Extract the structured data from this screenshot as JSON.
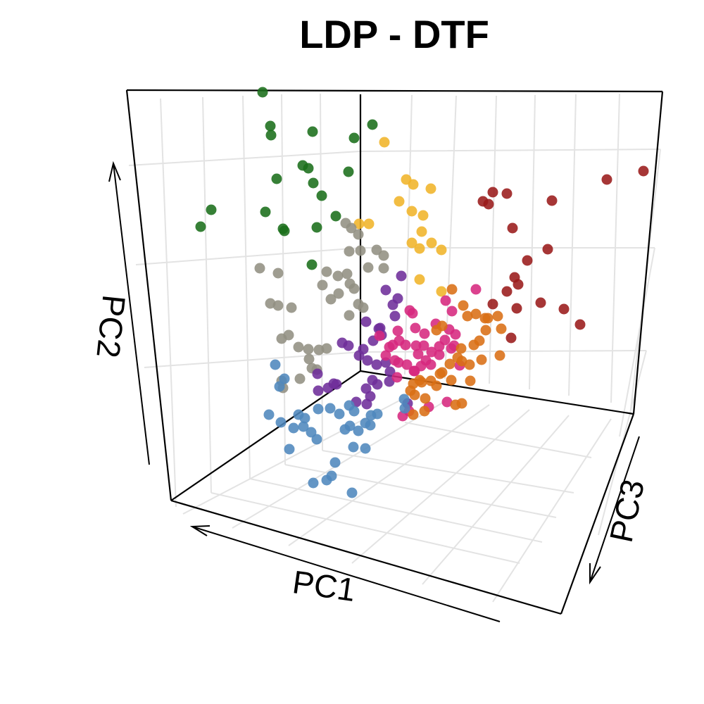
{
  "chart_data": {
    "type": "scatter",
    "title": "LDP - DTF",
    "projection": "3d",
    "axes": {
      "x": {
        "label": "PC1"
      },
      "y": {
        "label": "PC2"
      },
      "z": {
        "label": "PC3"
      }
    },
    "grid": true,
    "legend": "none",
    "series": [
      {
        "color": "#1a6e1a",
        "points": [
          [
            373,
            131
          ],
          [
            384,
            179
          ],
          [
            385,
            192
          ],
          [
            444,
            187
          ],
          [
            503,
            196
          ],
          [
            529,
            177
          ],
          [
            430,
            235
          ],
          [
            438,
            239
          ],
          [
            393,
            254
          ],
          [
            495,
            244
          ],
          [
            445,
            260
          ],
          [
            457,
            278
          ],
          [
            300,
            298
          ],
          [
            285,
            322
          ],
          [
            377,
            301
          ],
          [
            402,
            325
          ],
          [
            404,
            328
          ],
          [
            450,
            323
          ],
          [
            477,
            307
          ],
          [
            443,
            376
          ]
        ]
      },
      {
        "color": "#f0b429",
        "points": [
          [
            546,
            202
          ],
          [
            577,
            255
          ],
          [
            587,
            262
          ],
          [
            612,
            268
          ],
          [
            567,
            286
          ],
          [
            585,
            300
          ],
          [
            601,
            306
          ],
          [
            599,
            329
          ],
          [
            524,
            318
          ],
          [
            510,
            318
          ],
          [
            585,
            345
          ],
          [
            596,
            353
          ],
          [
            613,
            345
          ],
          [
            627,
            355
          ],
          [
            596,
            397
          ],
          [
            627,
            414
          ]
        ]
      },
      {
        "color": "#9a1a1a",
        "points": [
          [
            914,
            243
          ],
          [
            862,
            255
          ],
          [
            700,
            273
          ],
          [
            720,
            275
          ],
          [
            686,
            286
          ],
          [
            694,
            290
          ],
          [
            784,
            285
          ],
          [
            728,
            324
          ],
          [
            778,
            354
          ],
          [
            749,
            370
          ],
          [
            731,
            394
          ],
          [
            736,
            404
          ],
          [
            720,
            414
          ],
          [
            768,
            430
          ],
          [
            801,
            439
          ],
          [
            824,
            461
          ],
          [
            734,
            438
          ],
          [
            700,
            432
          ],
          [
            726,
            480
          ]
        ]
      },
      {
        "color": "#928f82",
        "points": [
          [
            491,
            317
          ],
          [
            499,
            324
          ],
          [
            509,
            333
          ],
          [
            512,
            356
          ],
          [
            496,
            357
          ],
          [
            535,
            355
          ],
          [
            545,
            363
          ],
          [
            523,
            380
          ],
          [
            545,
            381
          ],
          [
            369,
            381
          ],
          [
            395,
            388
          ],
          [
            464,
            386
          ],
          [
            480,
            392
          ],
          [
            458,
            405
          ],
          [
            470,
            425
          ],
          [
            481,
            417
          ],
          [
            497,
            403
          ],
          [
            493,
            389
          ],
          [
            503,
            410
          ],
          [
            509,
            432
          ],
          [
            516,
            437
          ],
          [
            384,
            431
          ],
          [
            395,
            434
          ],
          [
            414,
            437
          ],
          [
            496,
            448
          ],
          [
            410,
            476
          ],
          [
            400,
            481
          ],
          [
            424,
            493
          ],
          [
            453,
            497
          ],
          [
            464,
            495
          ],
          [
            439,
            510
          ],
          [
            443,
            523
          ],
          [
            426,
            538
          ],
          [
            450,
            525
          ],
          [
            400,
            541
          ],
          [
            402,
            551
          ],
          [
            438,
            496
          ]
        ]
      },
      {
        "color": "#6e2d9a",
        "points": [
          [
            570,
            392
          ],
          [
            548,
            412
          ],
          [
            558,
            433
          ],
          [
            565,
            424
          ],
          [
            561,
            449
          ],
          [
            520,
            457
          ],
          [
            538,
            467
          ],
          [
            486,
            487
          ],
          [
            495,
            491
          ],
          [
            516,
            496
          ],
          [
            510,
            505
          ],
          [
            522,
            512
          ],
          [
            535,
            518
          ],
          [
            548,
            515
          ],
          [
            554,
            528
          ],
          [
            529,
            540
          ],
          [
            536,
            546
          ],
          [
            553,
            542
          ],
          [
            474,
            545
          ],
          [
            466,
            551
          ],
          [
            520,
            552
          ],
          [
            526,
            563
          ],
          [
            506,
            571
          ],
          [
            521,
            574
          ],
          [
            579,
            573
          ],
          [
            451,
            531
          ],
          [
            452,
            555
          ],
          [
            478,
            546
          ],
          [
            540,
            466
          ],
          [
            542,
            476
          ],
          [
            530,
            484
          ]
        ]
      },
      {
        "color": "#d6287e",
        "points": [
          [
            676,
            411
          ],
          [
            633,
            427
          ],
          [
            642,
            442
          ],
          [
            582,
            441
          ],
          [
            586,
            445
          ],
          [
            619,
            460
          ],
          [
            565,
            470
          ],
          [
            539,
            477
          ],
          [
            553,
            493
          ],
          [
            567,
            484
          ],
          [
            576,
            490
          ],
          [
            591,
            491
          ],
          [
            602,
            491
          ],
          [
            613,
            500
          ],
          [
            594,
            503
          ],
          [
            605,
            512
          ],
          [
            598,
            520
          ],
          [
            612,
            518
          ],
          [
            624,
            504
          ],
          [
            641,
            495
          ],
          [
            561,
            512
          ],
          [
            578,
            518
          ],
          [
            589,
            527
          ],
          [
            638,
            468
          ],
          [
            647,
            475
          ],
          [
            632,
            483
          ],
          [
            624,
            492
          ],
          [
            645,
            491
          ],
          [
            590,
            466
          ],
          [
            603,
            474
          ],
          [
            558,
            490
          ],
          [
            548,
            505
          ],
          [
            635,
            571
          ],
          [
            609,
            578
          ],
          [
            581,
            584
          ],
          [
            572,
            591
          ],
          [
            653,
            519
          ],
          [
            566,
            515
          ],
          [
            564,
            536
          ],
          [
            588,
            527
          ]
        ]
      },
      {
        "color": "#d96e14",
        "points": [
          [
            642,
            411
          ],
          [
            658,
            434
          ],
          [
            676,
            446
          ],
          [
            664,
            449
          ],
          [
            689,
            452
          ],
          [
            707,
            449
          ],
          [
            712,
            467
          ],
          [
            690,
            469
          ],
          [
            681,
            484
          ],
          [
            673,
            490
          ],
          [
            655,
            495
          ],
          [
            628,
            463
          ],
          [
            620,
            469
          ],
          [
            650,
            508
          ],
          [
            639,
            517
          ],
          [
            656,
            513
          ],
          [
            667,
            518
          ],
          [
            710,
            505
          ],
          [
            684,
            511
          ],
          [
            628,
            529
          ],
          [
            612,
            541
          ],
          [
            596,
            540
          ],
          [
            587,
            545
          ],
          [
            583,
            555
          ],
          [
            589,
            561
          ],
          [
            604,
            566
          ],
          [
            668,
            541
          ],
          [
            656,
            573
          ],
          [
            647,
            575
          ],
          [
            587,
            589
          ],
          [
            603,
            584
          ],
          [
            625,
            531
          ],
          [
            641,
            540
          ],
          [
            620,
            548
          ],
          [
            599,
            543
          ],
          [
            693,
            452
          ]
        ]
      },
      {
        "color": "#4f87bd",
        "points": [
          [
            391,
            518
          ],
          [
            404,
            538
          ],
          [
            397,
            549
          ],
          [
            382,
            589
          ],
          [
            399,
            600
          ],
          [
            424,
            589
          ],
          [
            433,
            594
          ],
          [
            452,
            581
          ],
          [
            469,
            580
          ],
          [
            482,
            588
          ],
          [
            496,
            576
          ],
          [
            503,
            584
          ],
          [
            417,
            608
          ],
          [
            431,
            606
          ],
          [
            442,
            614
          ],
          [
            450,
            624
          ],
          [
            497,
            605
          ],
          [
            509,
            612
          ],
          [
            519,
            601
          ],
          [
            527,
            590
          ],
          [
            536,
            588
          ],
          [
            526,
            604
          ],
          [
            502,
            635
          ],
          [
            519,
            637
          ],
          [
            490,
            610
          ],
          [
            411,
            638
          ],
          [
            476,
            657
          ],
          [
            471,
            676
          ],
          [
            464,
            682
          ],
          [
            445,
            686
          ],
          [
            500,
            700
          ],
          [
            575,
            580
          ],
          [
            574,
            567
          ]
        ]
      }
    ]
  }
}
